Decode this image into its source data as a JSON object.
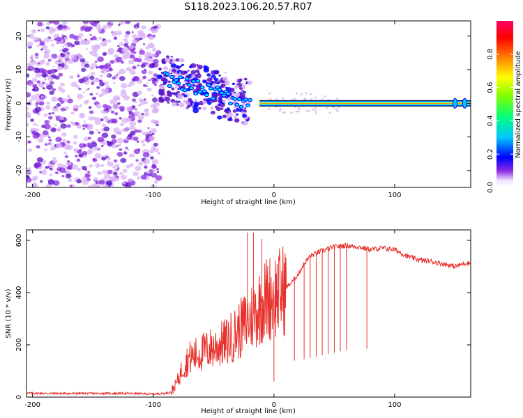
{
  "title": "S118.2023.106.20.57.R07",
  "colors": {
    "snr_line": "#e8302c",
    "blob_low": "#d9b3f5",
    "blob_mid": "#8a2be2",
    "blob_dark": "#5a12c8"
  },
  "chart_data": [
    {
      "type": "heatmap",
      "xlabel": "Height of straight line (km)",
      "ylabel": "Frequency (Hz)",
      "xlim": [
        -205,
        163
      ],
      "ylim": [
        -25,
        24.5
      ],
      "xticks": [
        -200,
        -100,
        0,
        100
      ],
      "yticks": [
        -20,
        -10,
        0,
        10,
        20
      ],
      "colorbar": {
        "label": "Normalized spectral amplitude",
        "range": [
          0,
          1
        ],
        "ticks": [
          0.0,
          0.2,
          0.4,
          0.6,
          0.8
        ],
        "colormap": "gist_rainbow_r",
        "position": "right"
      },
      "features": [
        {
          "x_range": [
            -205,
            -95
          ],
          "description_values": {
            "freq_range": [
              -25,
              24.5
            ],
            "amplitude": [
              0.0,
              0.1
            ]
          }
        },
        {
          "x_range": [
            -95,
            -25
          ],
          "freq_start": 8,
          "freq_end": 0,
          "amplitude_peak": 0.4
        },
        {
          "x_range": [
            -20,
            163
          ],
          "freq": 0,
          "amplitude_peak": 1.0
        }
      ]
    },
    {
      "type": "line",
      "xlabel": "Height of straight line (km)",
      "ylabel": "SNR (10 * v/v)",
      "xlim": [
        -205,
        163
      ],
      "ylim": [
        0,
        640
      ],
      "xticks": [
        -200,
        -100,
        0,
        100
      ],
      "yticks": [
        0,
        200,
        400,
        600
      ],
      "grid": false,
      "series": [
        {
          "x": [
            -205,
            -180,
            -150,
            -120,
            -100,
            -90,
            -85,
            -80,
            -75,
            -70,
            -60,
            -50,
            -40,
            -30,
            -20,
            -15,
            -10,
            -5,
            0,
            5,
            10,
            15,
            20,
            25,
            30,
            40,
            50,
            60,
            70,
            80,
            90,
            100,
            110,
            120,
            130,
            140,
            150,
            160,
            163
          ],
          "y": [
            15,
            14,
            14,
            14,
            12,
            14,
            20,
            60,
            120,
            150,
            170,
            190,
            210,
            250,
            300,
            330,
            360,
            380,
            390,
            400,
            420,
            440,
            470,
            510,
            540,
            560,
            575,
            580,
            575,
            565,
            570,
            565,
            540,
            525,
            520,
            510,
            500,
            515,
            510
          ],
          "spikes": [
            {
              "x": -22,
              "y": 630
            },
            {
              "x": -17,
              "y": 630
            },
            {
              "x": -10,
              "y": 605
            },
            {
              "x": 0,
              "y": 60
            },
            {
              "x": 17,
              "y": 140
            },
            {
              "x": 25,
              "y": 145
            },
            {
              "x": 30,
              "y": 150
            },
            {
              "x": 35,
              "y": 155
            },
            {
              "x": 40,
              "y": 160
            },
            {
              "x": 45,
              "y": 165
            },
            {
              "x": 50,
              "y": 170
            },
            {
              "x": 55,
              "y": 175
            },
            {
              "x": 60,
              "y": 180
            },
            {
              "x": 77,
              "y": 185
            }
          ]
        }
      ]
    }
  ]
}
